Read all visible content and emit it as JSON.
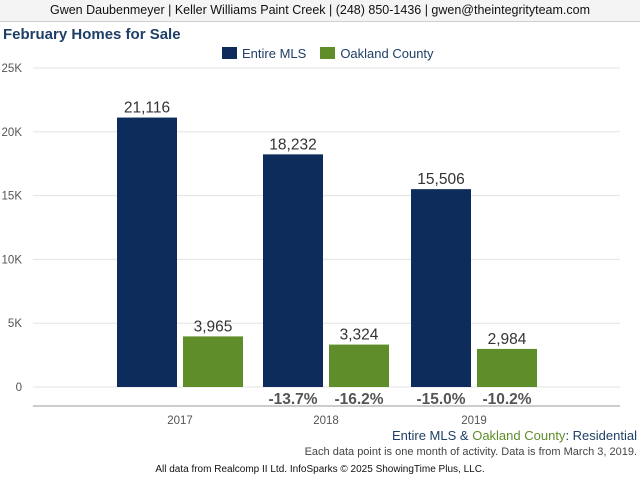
{
  "header": {
    "contact_line": "Gwen Daubenmeyer | Keller Williams Paint Creek | (248) 850-1436 | gwen@theintegrityteam.com"
  },
  "title": "February Homes for Sale",
  "colors": {
    "entire_mls": "#0d2c5c",
    "oakland_county": "#5f8d2a",
    "title": "#1f3f66",
    "footer_residential": "#1f3f66"
  },
  "chart_data": {
    "type": "bar",
    "title": "February Homes for Sale",
    "categories": [
      "2017",
      "2018",
      "2019"
    ],
    "series": [
      {
        "name": "Entire MLS",
        "values": [
          21116,
          18232,
          15506
        ],
        "value_labels": [
          "21,116",
          "18,232",
          "15,506"
        ],
        "change_labels": [
          "",
          "-13.7%",
          "-15.0%"
        ]
      },
      {
        "name": "Oakland County",
        "values": [
          3965,
          3324,
          2984
        ],
        "value_labels": [
          "3,965",
          "3,324",
          "2,984"
        ],
        "change_labels": [
          "",
          "-16.2%",
          "-10.2%"
        ]
      }
    ],
    "yticks": [
      "0",
      "5K",
      "10K",
      "15K",
      "20K",
      "25K"
    ],
    "ylim": [
      0,
      25000
    ],
    "grid": true,
    "legend_position": "top"
  },
  "footer": {
    "series_a": "Entire MLS",
    "amp": " & ",
    "series_b": "Oakland County",
    "colon": ": ",
    "residential": "Residential",
    "note": "Each data point is one month of activity. Data is from March 3, 2019.",
    "source": "All data from Realcomp II Ltd. InfoSparks © 2025 ShowingTime Plus, LLC."
  }
}
